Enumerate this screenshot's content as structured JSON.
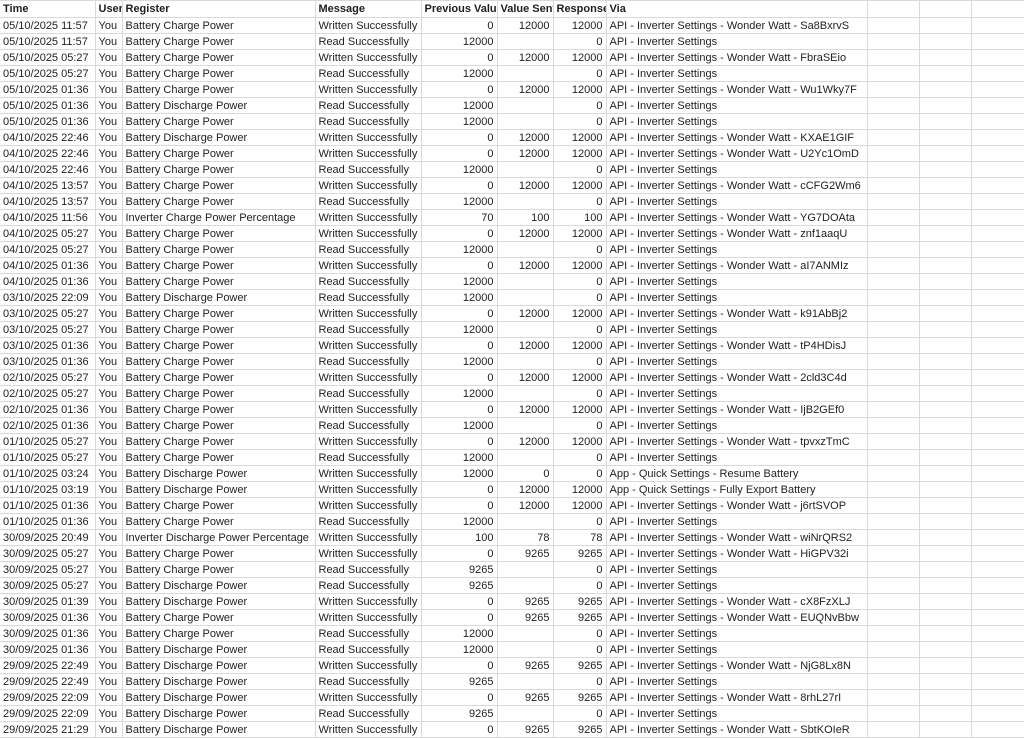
{
  "colors": {
    "gridline": "#d9d9d9",
    "text": "#1f1f1f",
    "background": "#ffffff"
  },
  "table": {
    "columns": [
      {
        "key": "time",
        "label": "Time",
        "align": "left"
      },
      {
        "key": "user",
        "label": "User",
        "align": "left"
      },
      {
        "key": "register",
        "label": "Register",
        "align": "left"
      },
      {
        "key": "message",
        "label": "Message",
        "align": "left"
      },
      {
        "key": "previous-value",
        "label": "Previous Value",
        "align": "right"
      },
      {
        "key": "value-sent",
        "label": "Value Sent",
        "align": "right"
      },
      {
        "key": "response",
        "label": "Response",
        "align": "right"
      },
      {
        "key": "via",
        "label": "Via",
        "align": "left"
      }
    ],
    "empty_trailing_columns": 3,
    "rows": [
      [
        "05/10/2025 11:57",
        "You",
        "Battery Charge Power",
        "Written Successfully",
        0,
        12000,
        12000,
        "API - Inverter Settings - Wonder Watt - Sa8BxrvS"
      ],
      [
        "05/10/2025 11:57",
        "You",
        "Battery Charge Power",
        "Read Successfully",
        12000,
        "",
        0,
        "API - Inverter Settings"
      ],
      [
        "05/10/2025 05:27",
        "You",
        "Battery Charge Power",
        "Written Successfully",
        0,
        12000,
        12000,
        "API - Inverter Settings - Wonder Watt - FbraSEio"
      ],
      [
        "05/10/2025 05:27",
        "You",
        "Battery Charge Power",
        "Read Successfully",
        12000,
        "",
        0,
        "API - Inverter Settings"
      ],
      [
        "05/10/2025 01:36",
        "You",
        "Battery Charge Power",
        "Written Successfully",
        0,
        12000,
        12000,
        "API - Inverter Settings - Wonder Watt - Wu1Wky7F"
      ],
      [
        "05/10/2025 01:36",
        "You",
        "Battery Discharge Power",
        "Read Successfully",
        12000,
        "",
        0,
        "API - Inverter Settings"
      ],
      [
        "05/10/2025 01:36",
        "You",
        "Battery Charge Power",
        "Read Successfully",
        12000,
        "",
        0,
        "API - Inverter Settings"
      ],
      [
        "04/10/2025 22:46",
        "You",
        "Battery Discharge Power",
        "Written Successfully",
        0,
        12000,
        12000,
        "API - Inverter Settings - Wonder Watt - KXAE1GIF"
      ],
      [
        "04/10/2025 22:46",
        "You",
        "Battery Charge Power",
        "Written Successfully",
        0,
        12000,
        12000,
        "API - Inverter Settings - Wonder Watt - U2Yc1OmD"
      ],
      [
        "04/10/2025 22:46",
        "You",
        "Battery Charge Power",
        "Read Successfully",
        12000,
        "",
        0,
        "API - Inverter Settings"
      ],
      [
        "04/10/2025 13:57",
        "You",
        "Battery Charge Power",
        "Written Successfully",
        0,
        12000,
        12000,
        "API - Inverter Settings - Wonder Watt - cCFG2Wm6"
      ],
      [
        "04/10/2025 13:57",
        "You",
        "Battery Charge Power",
        "Read Successfully",
        12000,
        "",
        0,
        "API - Inverter Settings"
      ],
      [
        "04/10/2025 11:56",
        "You",
        "Inverter Charge Power Percentage",
        "Written Successfully",
        70,
        100,
        100,
        "API - Inverter Settings - Wonder Watt - YG7DOAta"
      ],
      [
        "04/10/2025 05:27",
        "You",
        "Battery Charge Power",
        "Written Successfully",
        0,
        12000,
        12000,
        "API - Inverter Settings - Wonder Watt - znf1aaqU"
      ],
      [
        "04/10/2025 05:27",
        "You",
        "Battery Charge Power",
        "Read Successfully",
        12000,
        "",
        0,
        "API - Inverter Settings"
      ],
      [
        "04/10/2025 01:36",
        "You",
        "Battery Charge Power",
        "Written Successfully",
        0,
        12000,
        12000,
        "API - Inverter Settings - Wonder Watt - aI7ANMIz"
      ],
      [
        "04/10/2025 01:36",
        "You",
        "Battery Charge Power",
        "Read Successfully",
        12000,
        "",
        0,
        "API - Inverter Settings"
      ],
      [
        "03/10/2025 22:09",
        "You",
        "Battery Discharge Power",
        "Read Successfully",
        12000,
        "",
        0,
        "API - Inverter Settings"
      ],
      [
        "03/10/2025 05:27",
        "You",
        "Battery Charge Power",
        "Written Successfully",
        0,
        12000,
        12000,
        "API - Inverter Settings - Wonder Watt - k91AbBj2"
      ],
      [
        "03/10/2025 05:27",
        "You",
        "Battery Charge Power",
        "Read Successfully",
        12000,
        "",
        0,
        "API - Inverter Settings"
      ],
      [
        "03/10/2025 01:36",
        "You",
        "Battery Charge Power",
        "Written Successfully",
        0,
        12000,
        12000,
        "API - Inverter Settings - Wonder Watt - tP4HDisJ"
      ],
      [
        "03/10/2025 01:36",
        "You",
        "Battery Charge Power",
        "Read Successfully",
        12000,
        "",
        0,
        "API - Inverter Settings"
      ],
      [
        "02/10/2025 05:27",
        "You",
        "Battery Charge Power",
        "Written Successfully",
        0,
        12000,
        12000,
        "API - Inverter Settings - Wonder Watt - 2cld3C4d"
      ],
      [
        "02/10/2025 05:27",
        "You",
        "Battery Charge Power",
        "Read Successfully",
        12000,
        "",
        0,
        "API - Inverter Settings"
      ],
      [
        "02/10/2025 01:36",
        "You",
        "Battery Charge Power",
        "Written Successfully",
        0,
        12000,
        12000,
        "API - Inverter Settings - Wonder Watt - IjB2GEf0"
      ],
      [
        "02/10/2025 01:36",
        "You",
        "Battery Charge Power",
        "Read Successfully",
        12000,
        "",
        0,
        "API - Inverter Settings"
      ],
      [
        "01/10/2025 05:27",
        "You",
        "Battery Charge Power",
        "Written Successfully",
        0,
        12000,
        12000,
        "API - Inverter Settings - Wonder Watt - tpvxzTmC"
      ],
      [
        "01/10/2025 05:27",
        "You",
        "Battery Charge Power",
        "Read Successfully",
        12000,
        "",
        0,
        "API - Inverter Settings"
      ],
      [
        "01/10/2025 03:24",
        "You",
        "Battery Discharge Power",
        "Written Successfully",
        12000,
        0,
        0,
        "App - Quick Settings - Resume Battery"
      ],
      [
        "01/10/2025 03:19",
        "You",
        "Battery Discharge Power",
        "Written Successfully",
        0,
        12000,
        12000,
        "App - Quick Settings - Fully Export Battery"
      ],
      [
        "01/10/2025 01:36",
        "You",
        "Battery Charge Power",
        "Written Successfully",
        0,
        12000,
        12000,
        "API - Inverter Settings - Wonder Watt - j6rtSVOP"
      ],
      [
        "01/10/2025 01:36",
        "You",
        "Battery Charge Power",
        "Read Successfully",
        12000,
        "",
        0,
        "API - Inverter Settings"
      ],
      [
        "30/09/2025 20:49",
        "You",
        "Inverter Discharge Power Percentage",
        "Written Successfully",
        100,
        78,
        78,
        "API - Inverter Settings - Wonder Watt - wiNrQRS2"
      ],
      [
        "30/09/2025 05:27",
        "You",
        "Battery Charge Power",
        "Written Successfully",
        0,
        9265,
        9265,
        "API - Inverter Settings - Wonder Watt - HiGPV32i"
      ],
      [
        "30/09/2025 05:27",
        "You",
        "Battery Charge Power",
        "Read Successfully",
        9265,
        "",
        0,
        "API - Inverter Settings"
      ],
      [
        "30/09/2025 05:27",
        "You",
        "Battery Discharge Power",
        "Read Successfully",
        9265,
        "",
        0,
        "API - Inverter Settings"
      ],
      [
        "30/09/2025 01:39",
        "You",
        "Battery Discharge Power",
        "Written Successfully",
        0,
        9265,
        9265,
        "API - Inverter Settings - Wonder Watt - cX8FzXLJ"
      ],
      [
        "30/09/2025 01:36",
        "You",
        "Battery Charge Power",
        "Written Successfully",
        0,
        9265,
        9265,
        "API - Inverter Settings - Wonder Watt - EUQNvBbw"
      ],
      [
        "30/09/2025 01:36",
        "You",
        "Battery Charge Power",
        "Read Successfully",
        12000,
        "",
        0,
        "API - Inverter Settings"
      ],
      [
        "30/09/2025 01:36",
        "You",
        "Battery Discharge Power",
        "Read Successfully",
        12000,
        "",
        0,
        "API - Inverter Settings"
      ],
      [
        "29/09/2025 22:49",
        "You",
        "Battery Discharge Power",
        "Written Successfully",
        0,
        9265,
        9265,
        "API - Inverter Settings - Wonder Watt - NjG8Lx8N"
      ],
      [
        "29/09/2025 22:49",
        "You",
        "Battery Discharge Power",
        "Read Successfully",
        9265,
        "",
        0,
        "API - Inverter Settings"
      ],
      [
        "29/09/2025 22:09",
        "You",
        "Battery Discharge Power",
        "Written Successfully",
        0,
        9265,
        9265,
        "API - Inverter Settings - Wonder Watt - 8rhL27rI"
      ],
      [
        "29/09/2025 22:09",
        "You",
        "Battery Discharge Power",
        "Read Successfully",
        9265,
        "",
        0,
        "API - Inverter Settings"
      ],
      [
        "29/09/2025 21:29",
        "You",
        "Battery Discharge Power",
        "Written Successfully",
        0,
        9265,
        9265,
        "API - Inverter Settings - Wonder Watt - SbtKOIeR"
      ]
    ]
  }
}
